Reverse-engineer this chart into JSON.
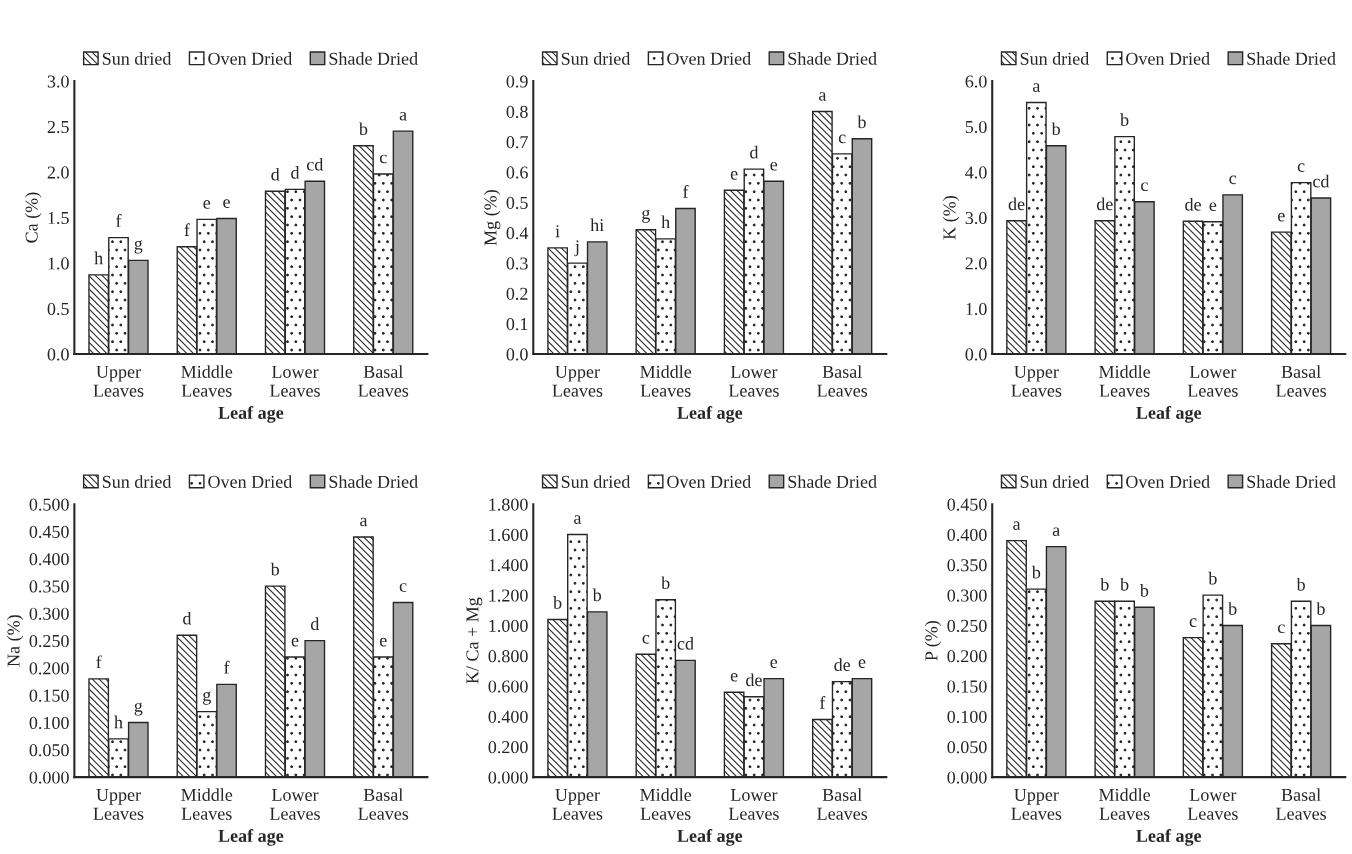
{
  "chart_data": [
    {
      "type": "bar",
      "xlabel": "Leaf age",
      "ylabel": "Ca (%)",
      "legend": "top",
      "categories": [
        "Upper\nLeaves",
        "Middle\nLeaves",
        "Lower\nLeaves",
        "Basal\nLeaves"
      ],
      "ylim": [
        0,
        3.0
      ],
      "yticks": [
        {
          "value": 0,
          "label": "0.0"
        },
        {
          "value": 0.5,
          "label": "0.5"
        },
        {
          "value": 1.0,
          "label": "1.0"
        },
        {
          "value": 1.5,
          "label": "1.5"
        },
        {
          "value": 2.0,
          "label": "2.0"
        },
        {
          "value": 2.5,
          "label": "2.5"
        },
        {
          "value": 3.0,
          "label": "3.0"
        }
      ],
      "grid": false,
      "series": [
        {
          "name": "Sun dried",
          "color": "#262626",
          "values": [
            0.87,
            1.18,
            1.79,
            2.29
          ],
          "value_labels": [
            "h",
            "f",
            "d",
            "b"
          ]
        },
        {
          "name": "Oven Dried",
          "color": "#262626",
          "values": [
            1.28,
            1.48,
            1.81,
            1.98
          ],
          "value_labels": [
            "f",
            "e",
            "d",
            "c"
          ]
        },
        {
          "name": "Shade Dried",
          "color": "#a6a6a6",
          "values": [
            1.03,
            1.49,
            1.9,
            2.45
          ],
          "value_labels": [
            "g",
            "e",
            "cd",
            "a"
          ]
        }
      ]
    },
    {
      "type": "bar",
      "xlabel": "Leaf age",
      "ylabel": "Mg (%)",
      "legend": "top",
      "categories": [
        "Upper\nLeaves",
        "Middle\nLeaves",
        "Lower\nLeaves",
        "Basal\nLeaves"
      ],
      "ylim": [
        0,
        0.9
      ],
      "yticks": [
        {
          "value": 0,
          "label": "0.0"
        },
        {
          "value": 0.1,
          "label": "0.1"
        },
        {
          "value": 0.2,
          "label": "0.2"
        },
        {
          "value": 0.3,
          "label": "0.3"
        },
        {
          "value": 0.4,
          "label": "0.4"
        },
        {
          "value": 0.5,
          "label": "0.5"
        },
        {
          "value": 0.6,
          "label": "0.6"
        },
        {
          "value": 0.7,
          "label": "0.7"
        },
        {
          "value": 0.8,
          "label": "0.8"
        },
        {
          "value": 0.9,
          "label": "0.9"
        }
      ],
      "grid": false,
      "series": [
        {
          "name": "Sun dried",
          "color": "#262626",
          "values": [
            0.35,
            0.41,
            0.54,
            0.8
          ],
          "value_labels": [
            "i",
            "g",
            "e",
            "a"
          ]
        },
        {
          "name": "Oven Dried",
          "color": "#262626",
          "values": [
            0.3,
            0.38,
            0.61,
            0.66
          ],
          "value_labels": [
            "j",
            "h",
            "d",
            "c"
          ]
        },
        {
          "name": "Shade Dried",
          "color": "#a6a6a6",
          "values": [
            0.37,
            0.48,
            0.57,
            0.71
          ],
          "value_labels": [
            "hi",
            "f",
            "e",
            "b"
          ]
        }
      ]
    },
    {
      "type": "bar",
      "xlabel": "Leaf age",
      "ylabel": "K (%)",
      "legend": "top",
      "categories": [
        "Upper\nLeaves",
        "Middle\nLeaves",
        "Lower\nLeaves",
        "Basal\nLeaves"
      ],
      "ylim": [
        0,
        6.0
      ],
      "yticks": [
        {
          "value": 0,
          "label": "0.0"
        },
        {
          "value": 1,
          "label": "1.0"
        },
        {
          "value": 2,
          "label": "2.0"
        },
        {
          "value": 3,
          "label": "3.0"
        },
        {
          "value": 4,
          "label": "4.0"
        },
        {
          "value": 5,
          "label": "5.0"
        },
        {
          "value": 6,
          "label": "6.0"
        }
      ],
      "grid": false,
      "series": [
        {
          "name": "Sun dried",
          "color": "#262626",
          "values": [
            2.93,
            2.93,
            2.92,
            2.68
          ],
          "value_labels": [
            "de",
            "de",
            "de",
            "e"
          ]
        },
        {
          "name": "Oven Dried",
          "color": "#262626",
          "values": [
            5.53,
            4.78,
            2.91,
            3.77
          ],
          "value_labels": [
            "a",
            "b",
            "e",
            "c"
          ]
        },
        {
          "name": "Shade Dried",
          "color": "#a6a6a6",
          "values": [
            4.58,
            3.35,
            3.5,
            3.43
          ],
          "value_labels": [
            "b",
            "c",
            "c",
            "cd"
          ]
        }
      ]
    },
    {
      "type": "bar",
      "xlabel": "Leaf age",
      "ylabel": "Na (%)",
      "legend": "top",
      "categories": [
        "Upper\nLeaves",
        "Middle\nLeaves",
        "Lower\nLeaves",
        "Basal\nLeaves"
      ],
      "ylim": [
        0,
        0.5
      ],
      "yticks": [
        {
          "value": 0,
          "label": "0.000"
        },
        {
          "value": 0.05,
          "label": "0.050"
        },
        {
          "value": 0.1,
          "label": "0.100"
        },
        {
          "value": 0.15,
          "label": "0.150"
        },
        {
          "value": 0.2,
          "label": "0.200"
        },
        {
          "value": 0.25,
          "label": "0.250"
        },
        {
          "value": 0.3,
          "label": "0.300"
        },
        {
          "value": 0.35,
          "label": "0.350"
        },
        {
          "value": 0.4,
          "label": "0.400"
        },
        {
          "value": 0.45,
          "label": "0.450"
        },
        {
          "value": 0.5,
          "label": "0.500"
        }
      ],
      "grid": false,
      "series": [
        {
          "name": "Sun dried",
          "color": "#262626",
          "values": [
            0.18,
            0.26,
            0.35,
            0.44
          ],
          "value_labels": [
            "f",
            "d",
            "b",
            "a"
          ]
        },
        {
          "name": "Oven Dried",
          "color": "#262626",
          "values": [
            0.07,
            0.12,
            0.22,
            0.22
          ],
          "value_labels": [
            "h",
            "g",
            "e",
            "e"
          ]
        },
        {
          "name": "Shade Dried",
          "color": "#a6a6a6",
          "values": [
            0.1,
            0.17,
            0.25,
            0.32
          ],
          "value_labels": [
            "g",
            "f",
            "d",
            "c"
          ]
        }
      ]
    },
    {
      "type": "bar",
      "xlabel": "Leaf age",
      "ylabel": "K/ Ca + Mg",
      "legend": "top",
      "categories": [
        "Upper\nLeaves",
        "Middle\nLeaves",
        "Lower\nLeaves",
        "Basal\nLeaves"
      ],
      "ylim": [
        0,
        1.8
      ],
      "yticks": [
        {
          "value": 0,
          "label": "0.000"
        },
        {
          "value": 0.2,
          "label": "0.200"
        },
        {
          "value": 0.4,
          "label": "0.400"
        },
        {
          "value": 0.6,
          "label": "0.600"
        },
        {
          "value": 0.8,
          "label": "0.800"
        },
        {
          "value": 1.0,
          "label": "1.000"
        },
        {
          "value": 1.2,
          "label": "1.200"
        },
        {
          "value": 1.4,
          "label": "1.400"
        },
        {
          "value": 1.6,
          "label": "1.600"
        },
        {
          "value": 1.8,
          "label": "1.800"
        }
      ],
      "grid": false,
      "series": [
        {
          "name": "Sun dried",
          "color": "#262626",
          "values": [
            1.04,
            0.81,
            0.56,
            0.38
          ],
          "value_labels": [
            "b",
            "c",
            "e",
            "f"
          ]
        },
        {
          "name": "Oven Dried",
          "color": "#262626",
          "values": [
            1.6,
            1.17,
            0.53,
            0.63
          ],
          "value_labels": [
            "a",
            "b",
            "de",
            "de"
          ]
        },
        {
          "name": "Shade Dried",
          "color": "#a6a6a6",
          "values": [
            1.09,
            0.77,
            0.65,
            0.65
          ],
          "value_labels": [
            "b",
            "cd",
            "e",
            "e"
          ]
        }
      ]
    },
    {
      "type": "bar",
      "xlabel": "Leaf age",
      "ylabel": "P (%)",
      "legend": "top",
      "categories": [
        "Upper\nLeaves",
        "Middle\nLeaves",
        "Lower\nLeaves",
        "Basal\nLeaves"
      ],
      "ylim": [
        0,
        0.45
      ],
      "yticks": [
        {
          "value": 0,
          "label": "0.000"
        },
        {
          "value": 0.05,
          "label": "0.050"
        },
        {
          "value": 0.1,
          "label": "0.100"
        },
        {
          "value": 0.15,
          "label": "0.150"
        },
        {
          "value": 0.2,
          "label": "0.200"
        },
        {
          "value": 0.25,
          "label": "0.250"
        },
        {
          "value": 0.3,
          "label": "0.300"
        },
        {
          "value": 0.35,
          "label": "0.350"
        },
        {
          "value": 0.4,
          "label": "0.400"
        },
        {
          "value": 0.45,
          "label": "0.450"
        }
      ],
      "grid": false,
      "series": [
        {
          "name": "Sun dried",
          "color": "#262626",
          "values": [
            0.39,
            0.29,
            0.23,
            0.22
          ],
          "value_labels": [
            "a",
            "b",
            "c",
            "c"
          ]
        },
        {
          "name": "Oven Dried",
          "color": "#262626",
          "values": [
            0.31,
            0.29,
            0.3,
            0.29
          ],
          "value_labels": [
            "b",
            "b",
            "b",
            "b"
          ]
        },
        {
          "name": "Shade Dried",
          "color": "#a6a6a6",
          "values": [
            0.38,
            0.28,
            0.25,
            0.25
          ],
          "value_labels": [
            "a",
            "b",
            "b",
            "b"
          ]
        }
      ]
    }
  ]
}
